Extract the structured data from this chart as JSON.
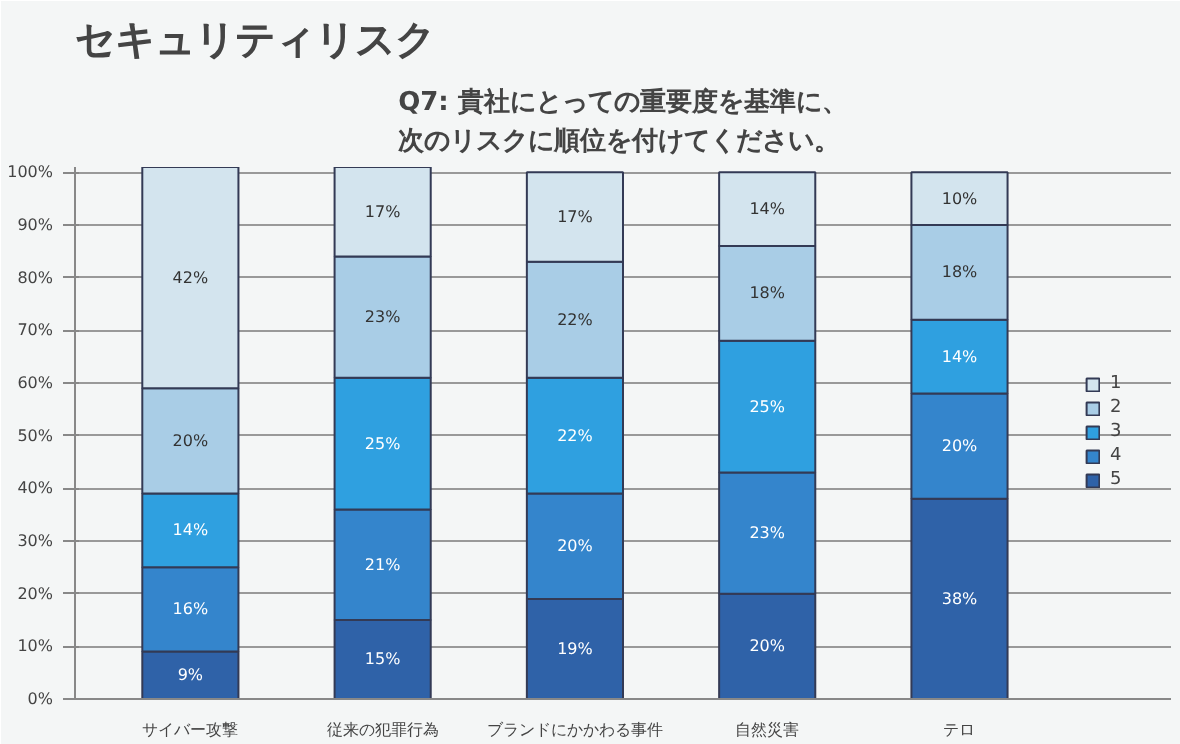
{
  "chart_data": {
    "type": "bar",
    "stacked": true,
    "title": "セキュリティリスク",
    "subtitle": "Q7: 貴社にとっての重要度を基準に、次のリスクに順位を付けてください。",
    "categories": [
      "サイバー攻撃",
      "従来の犯罪行為",
      "ブランドにかかわる事件",
      "自然災害",
      "テロ"
    ],
    "series": [
      {
        "name": "5",
        "color": "#2f62a8",
        "values": [
          9,
          15,
          19,
          20,
          38
        ],
        "value_labels": [
          "9%",
          "15%",
          "19%",
          "20%",
          "38%"
        ]
      },
      {
        "name": "4",
        "color": "#3485cc",
        "values": [
          16,
          21,
          20,
          23,
          20
        ],
        "value_labels": [
          "16%",
          "21%",
          "20%",
          "23%",
          "20%"
        ]
      },
      {
        "name": "3",
        "color": "#2fa0e0",
        "values": [
          14,
          25,
          22,
          25,
          14
        ],
        "value_labels": [
          "14%",
          "25%",
          "22%",
          "25%",
          "14%"
        ]
      },
      {
        "name": "2",
        "color": "#a9cde6",
        "values": [
          20,
          23,
          22,
          18,
          18
        ],
        "value_labels": [
          "20%",
          "23%",
          "22%",
          "18%",
          "18%"
        ]
      },
      {
        "name": "1",
        "color": "#d3e4ee",
        "values": [
          42,
          17,
          17,
          14,
          10
        ],
        "value_labels": [
          "42%",
          "17%",
          "17%",
          "14%",
          "10%"
        ]
      }
    ],
    "ylim": [
      0,
      101
    ],
    "yticks": [
      {
        "value": 0,
        "label": "0%"
      },
      {
        "value": 10,
        "label": "10%"
      },
      {
        "value": 20,
        "label": "20%"
      },
      {
        "value": 30,
        "label": "30%"
      },
      {
        "value": 40,
        "label": "40%"
      },
      {
        "value": 50,
        "label": "50%"
      },
      {
        "value": 60,
        "label": "60%"
      },
      {
        "value": 70,
        "label": "70%"
      },
      {
        "value": 80,
        "label": "80%"
      },
      {
        "value": 90,
        "label": "90%"
      },
      {
        "value": 100,
        "label": "100%"
      }
    ],
    "grid": "y",
    "legend": "right"
  }
}
